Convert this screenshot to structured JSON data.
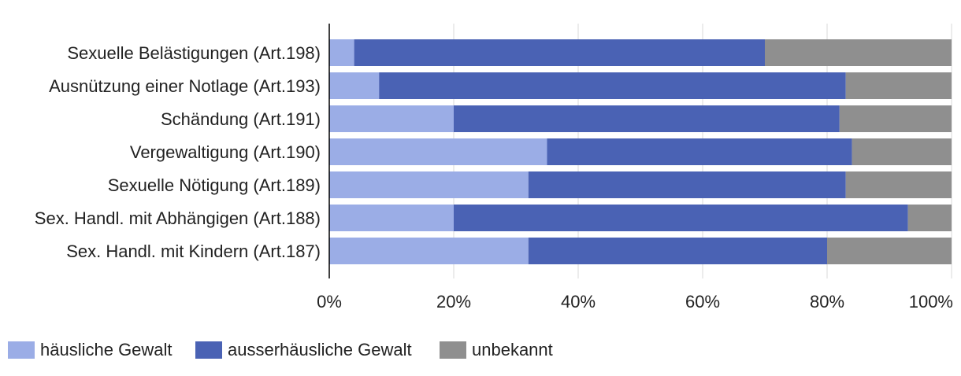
{
  "chart_data": {
    "type": "bar",
    "orientation": "horizontal",
    "stacked": "percent",
    "title": "",
    "xlabel": "",
    "ylabel": "",
    "xlim": [
      0,
      100
    ],
    "x_ticks": [
      "0%",
      "20%",
      "40%",
      "60%",
      "80%",
      "100%"
    ],
    "grid": "vertical",
    "legend_position": "bottom-left",
    "categories": [
      "Sexuelle Belästigungen (Art.198)",
      "Ausnützung einer Notlage (Art.193)",
      "Schändung (Art.191)",
      "Vergewaltigung (Art.190)",
      "Sexuelle Nötigung (Art.189)",
      "Sex. Handl. mit Abhängigen (Art.188)",
      "Sex. Handl. mit Kindern (Art.187)"
    ],
    "series": [
      {
        "name": "häusliche Gewalt",
        "color": "#9bade6",
        "values": [
          4,
          8,
          20,
          35,
          32,
          20,
          32
        ]
      },
      {
        "name": "ausserhäusliche Gewalt",
        "color": "#4a62b4",
        "values": [
          66,
          75,
          62,
          49,
          51,
          73,
          48
        ]
      },
      {
        "name": "unbekannt",
        "color": "#8f8f8f",
        "values": [
          30,
          17,
          18,
          16,
          17,
          7,
          20
        ]
      }
    ]
  }
}
